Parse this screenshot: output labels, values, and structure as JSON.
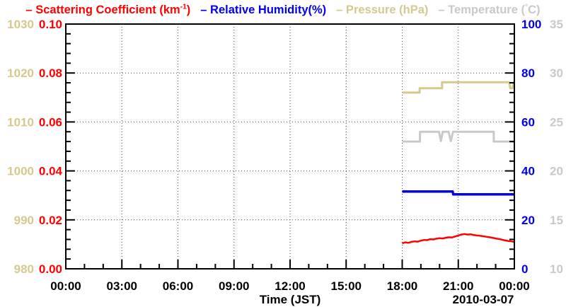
{
  "legend": {
    "entries": [
      {
        "name": "scattering",
        "color": "#ff0000",
        "prefix": "– Scattering Coefficient (km",
        "sup": "-1",
        "suffix": ")"
      },
      {
        "name": "humidity",
        "color": "#0000ee",
        "prefix": "– Relative Humidity(%)",
        "sup": "",
        "suffix": ""
      },
      {
        "name": "pressure",
        "color": "#d5c98c",
        "prefix": "– Pressure (hPa)",
        "sup": "",
        "suffix": ""
      },
      {
        "name": "temperature",
        "color": "#c9c9c9",
        "prefix": "– Temperature (",
        "sup": "°",
        "suffix": "C)"
      }
    ]
  },
  "chart_data": {
    "type": "line",
    "title": "– Scattering Coefficient (km-1) – Relative Humidity(%) – Pressure (hPa) – Temperature (°C)",
    "grid": {
      "style": "dotted",
      "color": "#444444",
      "horizontal_at": [
        0.02,
        0.04,
        0.06,
        0.08
      ],
      "vertical_at_hours": [
        3,
        6,
        9,
        12,
        15,
        18,
        21
      ]
    },
    "x_axis": {
      "label": "Time (JST)",
      "date_label": "2010-03-07",
      "range_hours": [
        0,
        24
      ],
      "tick_hours": [
        0,
        3,
        6,
        9,
        12,
        15,
        18,
        21,
        24
      ],
      "tick_labels": [
        "00:00",
        "03:00",
        "06:00",
        "09:00",
        "12:00",
        "15:00",
        "18:00",
        "21:00",
        "00:00"
      ],
      "minor_step_hours": 1
    },
    "y_axes": [
      {
        "id": "pressure",
        "side": "left-outer",
        "color": "#d5c98c",
        "range": [
          980,
          1030
        ],
        "tick_values": [
          980,
          990,
          1000,
          1010,
          1020,
          1030
        ],
        "tick_labels": [
          "980",
          "990",
          "1000",
          "1010",
          "1020",
          "1030"
        ],
        "minor_per_major": 5
      },
      {
        "id": "scattering",
        "side": "left-inner",
        "color": "#ff0000",
        "range": [
          0,
          0.1
        ],
        "tick_values": [
          0,
          0.02,
          0.04,
          0.06,
          0.08,
          0.1
        ],
        "tick_labels": [
          "0.00",
          "0.02",
          "0.04",
          "0.06",
          "0.08",
          "0.10"
        ],
        "minor_per_major": 5
      },
      {
        "id": "humidity",
        "side": "right-inner",
        "color": "#0000ee",
        "range": [
          0,
          100
        ],
        "tick_values": [
          0,
          20,
          40,
          60,
          80,
          100
        ],
        "tick_labels": [
          "0",
          "20",
          "40",
          "60",
          "80",
          "100"
        ],
        "minor_per_major": 5
      },
      {
        "id": "temperature",
        "side": "right-outer",
        "color": "#c9c9c9",
        "range": [
          10,
          35
        ],
        "tick_values": [
          10,
          15,
          20,
          25,
          30,
          35
        ],
        "tick_labels": [
          "10",
          "15",
          "20",
          "25",
          "30",
          "35"
        ],
        "minor_per_major": 5
      }
    ],
    "series": [
      {
        "name": "Pressure",
        "axis": "pressure",
        "color": "#d5c98c",
        "width": 3,
        "points": [
          [
            18.0,
            1016.0
          ],
          [
            18.93,
            1016.0
          ],
          [
            18.93,
            1016.9
          ],
          [
            20.13,
            1016.9
          ],
          [
            20.13,
            1018.1
          ],
          [
            23.73,
            1018.1
          ],
          [
            23.78,
            1016.9
          ],
          [
            23.9,
            1016.9
          ],
          [
            23.95,
            1018.1
          ],
          [
            24.0,
            1018.1
          ]
        ]
      },
      {
        "name": "Temperature",
        "axis": "temperature",
        "color": "#c9c9c9",
        "width": 3,
        "points": [
          [
            18.0,
            23.0
          ],
          [
            18.95,
            23.0
          ],
          [
            18.95,
            24.0
          ],
          [
            19.97,
            24.0
          ],
          [
            20.07,
            23.05
          ],
          [
            20.17,
            24.0
          ],
          [
            20.48,
            24.0
          ],
          [
            20.6,
            23.05
          ],
          [
            20.72,
            24.0
          ],
          [
            22.9,
            24.0
          ],
          [
            22.9,
            23.0
          ],
          [
            24.0,
            23.0
          ]
        ]
      },
      {
        "name": "Relative Humidity",
        "axis": "humidity",
        "color": "#0000ee",
        "width": 3.5,
        "points": [
          [
            18.0,
            31.6
          ],
          [
            20.7,
            31.6
          ],
          [
            20.73,
            30.4
          ],
          [
            24.0,
            30.4
          ]
        ]
      },
      {
        "name": "Scattering Coefficient",
        "axis": "scattering",
        "color": "#ff0000",
        "width": 2.5,
        "points": [
          [
            18.0,
            0.0104
          ],
          [
            18.17,
            0.0108
          ],
          [
            18.33,
            0.0106
          ],
          [
            18.5,
            0.011
          ],
          [
            18.67,
            0.0112
          ],
          [
            18.83,
            0.0111
          ],
          [
            19.0,
            0.0115
          ],
          [
            19.17,
            0.0118
          ],
          [
            19.33,
            0.0117
          ],
          [
            19.5,
            0.0121
          ],
          [
            19.67,
            0.012
          ],
          [
            19.83,
            0.0123
          ],
          [
            20.0,
            0.0125
          ],
          [
            20.17,
            0.0124
          ],
          [
            20.33,
            0.0127
          ],
          [
            20.5,
            0.0129
          ],
          [
            20.67,
            0.0128
          ],
          [
            20.83,
            0.0132
          ],
          [
            21.0,
            0.0136
          ],
          [
            21.17,
            0.014
          ],
          [
            21.33,
            0.0142
          ],
          [
            21.5,
            0.014
          ],
          [
            21.67,
            0.0141
          ],
          [
            21.83,
            0.0138
          ],
          [
            22.0,
            0.0136
          ],
          [
            22.17,
            0.0135
          ],
          [
            22.33,
            0.0133
          ],
          [
            22.5,
            0.0131
          ],
          [
            22.67,
            0.0129
          ],
          [
            22.83,
            0.0127
          ],
          [
            23.0,
            0.0124
          ],
          [
            23.17,
            0.0122
          ],
          [
            23.33,
            0.0119
          ],
          [
            23.5,
            0.0116
          ],
          [
            23.67,
            0.0114
          ],
          [
            23.83,
            0.0112
          ],
          [
            24.0,
            0.011
          ]
        ]
      }
    ]
  }
}
